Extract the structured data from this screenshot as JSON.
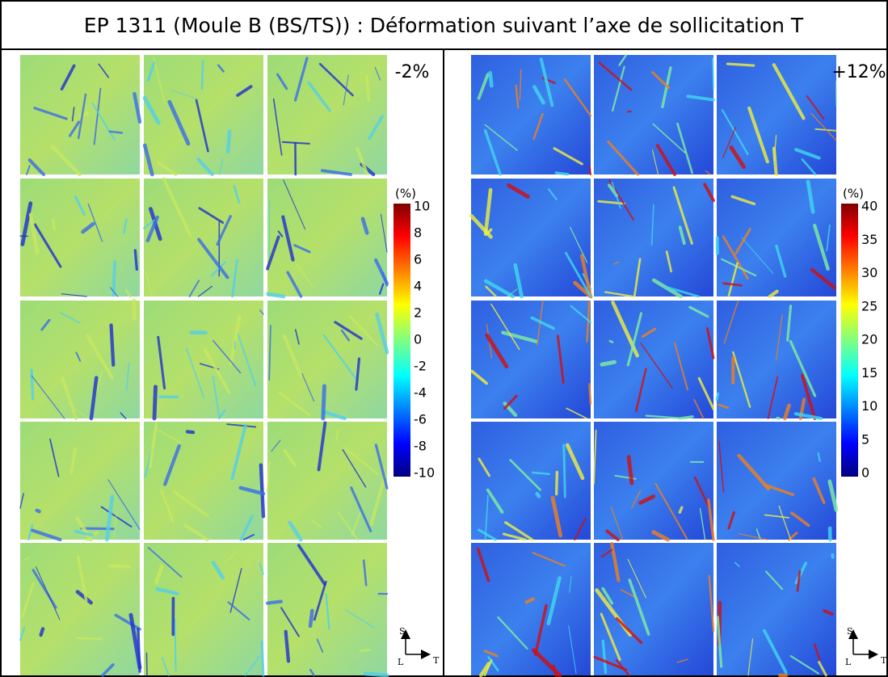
{
  "title": "EP 1311 (Moule B (BS/TS)) : Déformation suivant l’axe de sollicitation T",
  "panels": [
    {
      "label": "-2%",
      "colorbar": {
        "unit": "(%)",
        "ticks": [
          10,
          8,
          6,
          4,
          2,
          0,
          -2,
          -4,
          -6,
          -8,
          -10
        ]
      },
      "axes": {
        "up": "S",
        "left": "L",
        "right": "T"
      }
    },
    {
      "label": "+12%",
      "colorbar": {
        "unit": "(%)",
        "ticks": [
          40,
          35,
          30,
          25,
          20,
          15,
          10,
          5,
          0
        ]
      },
      "axes": {
        "up": "S",
        "left": "L",
        "right": "T"
      }
    }
  ]
}
